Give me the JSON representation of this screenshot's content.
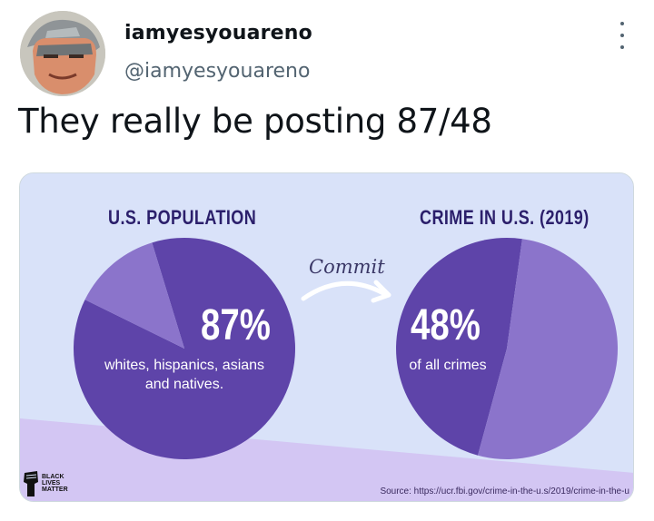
{
  "tweet": {
    "display_name": "iamyesyouareno",
    "handle": "@iamyesyouareno",
    "text": "They really be posting 87/48",
    "more_icon": "more-vertical-icon"
  },
  "infographic": {
    "left_heading": "U.S. POPULATION",
    "right_heading": "CRIME IN U.S. (2019)",
    "connector_text": "Commit",
    "left_big": "87%",
    "left_caption_line1": "whites, hispanics, asians",
    "left_caption_line2": "and natives.",
    "right_big": "48%",
    "right_caption": "of all crimes",
    "logo_text": [
      "BLACK",
      "LIVES",
      "MATTER"
    ],
    "source": "Source: https://ucr.fbi.gov/crime-in-the-u.s/2019/crime-in-the-u",
    "colors": {
      "dark_purple": "#5e44a9",
      "light_purple": "#8b74cb",
      "background": "#d9e2f9"
    }
  },
  "chart_data": [
    {
      "type": "pie",
      "title": "U.S. POPULATION",
      "categories": [
        "whites, hispanics, asians and natives.",
        ""
      ],
      "values": [
        87,
        13
      ]
    },
    {
      "type": "pie",
      "title": "CRIME IN U.S. (2019)",
      "categories": [
        "of all crimes",
        ""
      ],
      "values": [
        48,
        52
      ]
    }
  ]
}
